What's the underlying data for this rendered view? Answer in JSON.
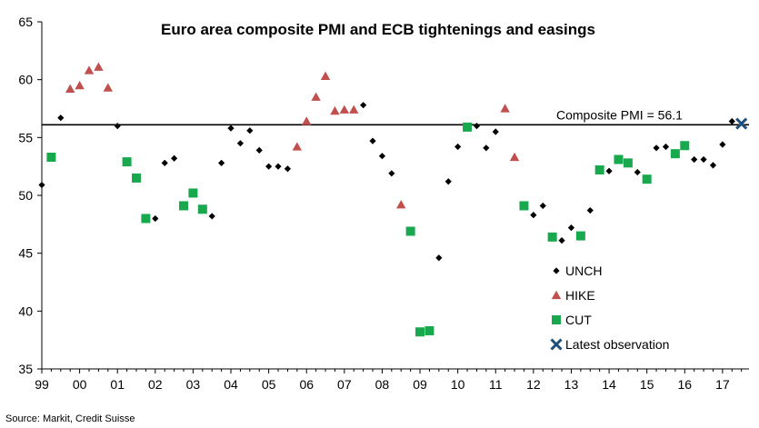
{
  "chart_data": {
    "type": "scatter",
    "title": "Euro area composite PMI and ECB tightenings and easings",
    "xlabel": "",
    "ylabel": "",
    "ylim": [
      35,
      65
    ],
    "yticks": [
      35,
      40,
      45,
      50,
      55,
      60,
      65
    ],
    "xlim": [
      1999,
      2017.7
    ],
    "xticks": [
      {
        "value": 1999,
        "label": "99"
      },
      {
        "value": 2000,
        "label": "00"
      },
      {
        "value": 2001,
        "label": "01"
      },
      {
        "value": 2002,
        "label": "02"
      },
      {
        "value": 2003,
        "label": "03"
      },
      {
        "value": 2004,
        "label": "04"
      },
      {
        "value": 2005,
        "label": "05"
      },
      {
        "value": 2006,
        "label": "06"
      },
      {
        "value": 2007,
        "label": "07"
      },
      {
        "value": 2008,
        "label": "08"
      },
      {
        "value": 2009,
        "label": "09"
      },
      {
        "value": 2010,
        "label": "10"
      },
      {
        "value": 2011,
        "label": "11"
      },
      {
        "value": 2012,
        "label": "12"
      },
      {
        "value": 2013,
        "label": "13"
      },
      {
        "value": 2014,
        "label": "14"
      },
      {
        "value": 2015,
        "label": "15"
      },
      {
        "value": 2016,
        "label": "16"
      },
      {
        "value": 2017,
        "label": "17"
      }
    ],
    "grid": false,
    "legend_position": "bottom-right",
    "reference_line": {
      "y": 56.1,
      "label": "Composite PMI = 56.1",
      "color": "#000000"
    },
    "series": [
      {
        "name": "UNCH",
        "marker": "diamond",
        "color": "#000000",
        "points": [
          [
            1999.0,
            50.9
          ],
          [
            1999.5,
            56.7
          ],
          [
            2001.0,
            56.0
          ],
          [
            2002.0,
            48.0
          ],
          [
            2002.25,
            52.8
          ],
          [
            2002.5,
            53.2
          ],
          [
            2003.5,
            48.2
          ],
          [
            2003.75,
            52.8
          ],
          [
            2004.0,
            55.8
          ],
          [
            2004.25,
            54.5
          ],
          [
            2004.5,
            55.6
          ],
          [
            2004.75,
            53.9
          ],
          [
            2005.0,
            52.5
          ],
          [
            2005.25,
            52.5
          ],
          [
            2005.5,
            52.3
          ],
          [
            2007.5,
            57.8
          ],
          [
            2007.75,
            54.7
          ],
          [
            2008.0,
            53.4
          ],
          [
            2008.25,
            51.9
          ],
          [
            2009.5,
            44.6
          ],
          [
            2009.75,
            51.2
          ],
          [
            2010.0,
            54.2
          ],
          [
            2010.5,
            56.0
          ],
          [
            2010.75,
            54.1
          ],
          [
            2011.0,
            55.5
          ],
          [
            2012.0,
            48.3
          ],
          [
            2012.25,
            49.1
          ],
          [
            2012.75,
            46.1
          ],
          [
            2013.0,
            47.2
          ],
          [
            2013.5,
            48.7
          ],
          [
            2014.0,
            52.1
          ],
          [
            2014.75,
            52.0
          ],
          [
            2015.25,
            54.1
          ],
          [
            2015.5,
            54.2
          ],
          [
            2016.25,
            53.1
          ],
          [
            2016.5,
            53.1
          ],
          [
            2016.75,
            52.6
          ],
          [
            2017.0,
            54.4
          ],
          [
            2017.25,
            56.4
          ]
        ]
      },
      {
        "name": "HIKE",
        "marker": "triangle",
        "color": "#c0504d",
        "points": [
          [
            1999.75,
            59.2
          ],
          [
            2000.0,
            59.5
          ],
          [
            2000.25,
            60.8
          ],
          [
            2000.5,
            61.1
          ],
          [
            2000.75,
            59.3
          ],
          [
            2005.75,
            54.2
          ],
          [
            2006.0,
            56.4
          ],
          [
            2006.25,
            58.5
          ],
          [
            2006.5,
            60.3
          ],
          [
            2006.75,
            57.3
          ],
          [
            2007.0,
            57.4
          ],
          [
            2007.25,
            57.4
          ],
          [
            2008.5,
            49.2
          ],
          [
            2011.25,
            57.5
          ],
          [
            2011.5,
            53.3
          ]
        ]
      },
      {
        "name": "CUT",
        "marker": "square",
        "color": "#18a94e",
        "points": [
          [
            1999.25,
            53.3
          ],
          [
            2001.25,
            52.9
          ],
          [
            2001.5,
            51.5
          ],
          [
            2001.75,
            48.0
          ],
          [
            2002.75,
            49.1
          ],
          [
            2003.0,
            50.2
          ],
          [
            2003.25,
            48.8
          ],
          [
            2008.75,
            46.9
          ],
          [
            2009.0,
            38.2
          ],
          [
            2009.25,
            38.3
          ],
          [
            2010.25,
            55.9
          ],
          [
            2011.75,
            49.1
          ],
          [
            2012.5,
            46.4
          ],
          [
            2013.25,
            46.5
          ],
          [
            2013.75,
            52.2
          ],
          [
            2014.25,
            53.1
          ],
          [
            2014.5,
            52.8
          ],
          [
            2015.0,
            51.4
          ],
          [
            2015.75,
            53.6
          ],
          [
            2016.0,
            54.3
          ]
        ]
      },
      {
        "name": "Latest observation",
        "marker": "x",
        "color": "#1f4e79",
        "points": [
          [
            2017.5,
            56.2
          ]
        ]
      }
    ]
  },
  "source": "Source: Markit, Credit Suisse"
}
